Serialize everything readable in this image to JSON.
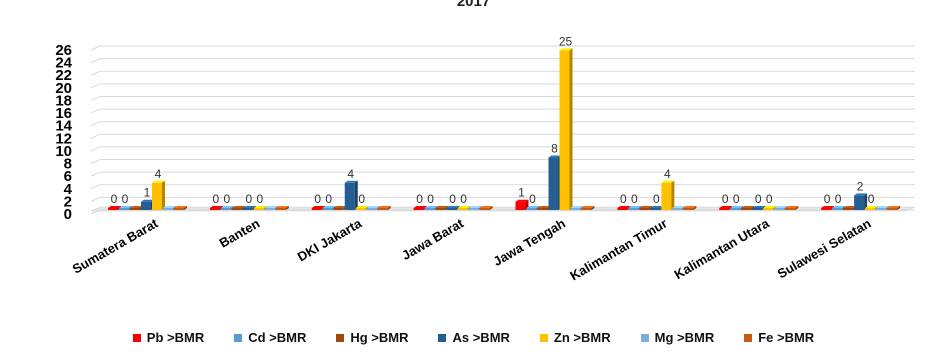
{
  "chart_data": {
    "type": "bar",
    "title": "2017",
    "categories": [
      "Sumatera Barat",
      "Banten",
      "DKI Jakarta",
      "Jawa Barat",
      "Jawa Tengah",
      "Kalimantan Timur",
      "Kalimantan Utara",
      "Sulawesi Selatan"
    ],
    "series": [
      {
        "name": "Pb >BMR",
        "color": "#ff0000",
        "values": [
          0,
          0,
          0,
          0,
          1,
          0,
          0,
          0
        ]
      },
      {
        "name": "Cd >BMR",
        "color": "#5b9bd5",
        "values": [
          0,
          0,
          0,
          0,
          0,
          0,
          0,
          0
        ]
      },
      {
        "name": "Hg >BMR",
        "color": "#9e480e",
        "values": [
          0,
          0,
          0,
          0,
          0,
          0,
          0,
          0
        ]
      },
      {
        "name": "As >BMR",
        "color": "#255e91",
        "values": [
          1,
          0,
          4,
          0,
          8,
          0,
          0,
          2
        ]
      },
      {
        "name": "Zn >BMR",
        "color": "#ffc000",
        "values": [
          4,
          0,
          0,
          0,
          25,
          4,
          0,
          0
        ]
      },
      {
        "name": "Mg >BMR",
        "color": "#7cafdd",
        "values": [
          0,
          0,
          0,
          0,
          0,
          0,
          0,
          0
        ]
      },
      {
        "name": "Fe >BMR",
        "color": "#c55a11",
        "values": [
          0,
          0,
          0,
          0,
          0,
          0,
          0,
          0
        ]
      }
    ],
    "value_labels": [
      [
        {
          "series": 0,
          "text": "0"
        },
        {
          "series": 1,
          "text": "0"
        },
        {
          "series": 3,
          "text": "1"
        },
        {
          "series": 4,
          "text": "4"
        }
      ],
      [
        {
          "series": 0,
          "text": "0"
        },
        {
          "series": 1,
          "text": "0"
        },
        {
          "series": 3,
          "text": "0"
        },
        {
          "series": 4,
          "text": "0"
        }
      ],
      [
        {
          "series": 0,
          "text": "0"
        },
        {
          "series": 1,
          "text": "0"
        },
        {
          "series": 3,
          "text": "4"
        },
        {
          "series": 4,
          "text": "0"
        }
      ],
      [
        {
          "series": 0,
          "text": "0"
        },
        {
          "series": 1,
          "text": "0"
        },
        {
          "series": 3,
          "text": "0"
        },
        {
          "series": 4,
          "text": "0"
        }
      ],
      [
        {
          "series": 0,
          "text": "1"
        },
        {
          "series": 1,
          "text": "0"
        },
        {
          "series": 3,
          "text": "8"
        },
        {
          "series": 4,
          "text": "25"
        }
      ],
      [
        {
          "series": 0,
          "text": "0"
        },
        {
          "series": 1,
          "text": "0"
        },
        {
          "series": 3,
          "text": "0"
        },
        {
          "series": 4,
          "text": "4"
        }
      ],
      [
        {
          "series": 0,
          "text": "0"
        },
        {
          "series": 1,
          "text": "0"
        },
        {
          "series": 3,
          "text": "0"
        },
        {
          "series": 4,
          "text": "0"
        }
      ],
      [
        {
          "series": 0,
          "text": "0"
        },
        {
          "series": 1,
          "text": "0"
        },
        {
          "series": 3,
          "text": "2"
        },
        {
          "series": 4,
          "text": "0"
        }
      ]
    ],
    "yticks": [
      0,
      2,
      4,
      6,
      8,
      10,
      12,
      14,
      16,
      18,
      20,
      22,
      24,
      26
    ],
    "ylim": [
      0,
      26
    ],
    "grid": true,
    "legend_position": "bottom",
    "xlabel": "",
    "ylabel": ""
  }
}
